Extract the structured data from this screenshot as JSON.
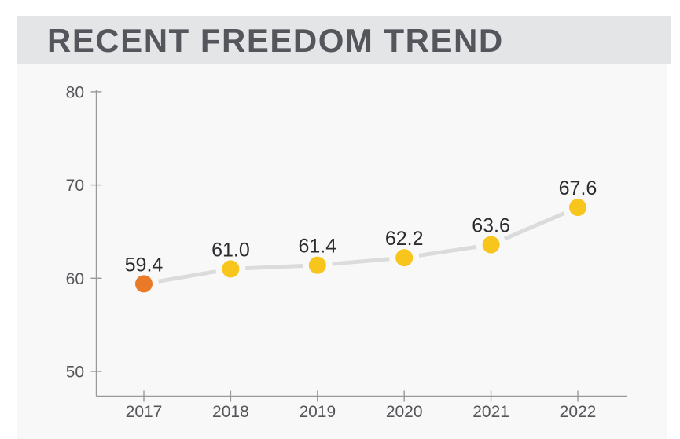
{
  "header": {
    "title": "RECENT FREEDOM TREND"
  },
  "chart_data": {
    "type": "line",
    "title": "RECENT FREEDOM TREND",
    "xlabel": "",
    "ylabel": "",
    "categories": [
      "2017",
      "2018",
      "2019",
      "2020",
      "2021",
      "2022"
    ],
    "values": [
      59.4,
      61.0,
      61.4,
      62.2,
      63.6,
      67.6
    ],
    "point_labels": [
      "59.4",
      "61.0",
      "61.4",
      "62.2",
      "63.6",
      "67.6"
    ],
    "y_ticks": [
      "80",
      "70",
      "60",
      "50"
    ],
    "y_tick_values": [
      80,
      70,
      60,
      50
    ],
    "ylim": [
      50,
      80
    ],
    "grid": false,
    "legend": "none",
    "highlight_index": 0,
    "colors": {
      "banner_bg": "#E4E5E7",
      "panel_bg": "#F8F8F8",
      "title_text": "#54565B",
      "axis": "#97999C",
      "axis_label": "#55565A",
      "data_label": "#2B2C2F",
      "line": "#DBDBDB",
      "marker": "#F8C51C",
      "marker_highlight": "#E87A28"
    }
  }
}
